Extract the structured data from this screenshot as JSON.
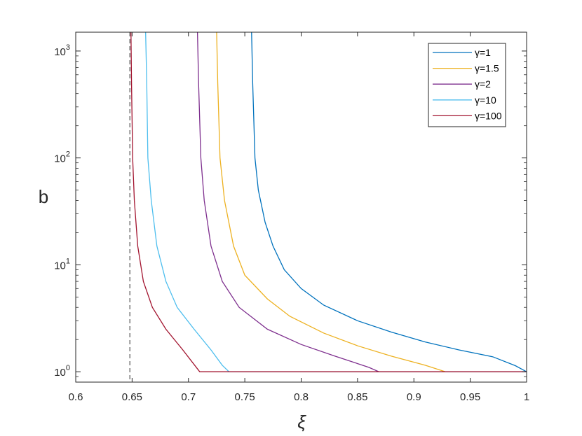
{
  "chart_data": {
    "type": "line",
    "title": "",
    "xlabel": "ξ",
    "ylabel": "b",
    "xlim": [
      0.6,
      1.0
    ],
    "ylim": [
      0.8,
      1500
    ],
    "yscale": "log",
    "grid": false,
    "legend_position": "top-right",
    "x_ticks": [
      "0.6",
      "0.65",
      "0.7",
      "0.75",
      "0.8",
      "0.85",
      "0.9",
      "0.95",
      "1"
    ],
    "y_ticks": [
      {
        "base": "10",
        "exp": "0"
      },
      {
        "base": "10",
        "exp": "1"
      },
      {
        "base": "10",
        "exp": "2"
      },
      {
        "base": "10",
        "exp": "3"
      }
    ],
    "reference_line": {
      "x": 0.648,
      "style": "dashed"
    },
    "series": [
      {
        "name": "γ=1",
        "color": "#0072BD",
        "points": [
          [
            0.756,
            1500
          ],
          [
            0.757,
            500
          ],
          [
            0.759,
            100
          ],
          [
            0.762,
            50
          ],
          [
            0.768,
            25
          ],
          [
            0.775,
            15
          ],
          [
            0.785,
            9
          ],
          [
            0.8,
            6
          ],
          [
            0.82,
            4.2
          ],
          [
            0.85,
            3
          ],
          [
            0.88,
            2.35
          ],
          [
            0.91,
            1.9
          ],
          [
            0.94,
            1.6
          ],
          [
            0.97,
            1.38
          ],
          [
            0.99,
            1.14
          ],
          [
            1.0,
            1.0
          ]
        ]
      },
      {
        "name": "γ=1.5",
        "color": "#EDB120",
        "points": [
          [
            0.725,
            1500
          ],
          [
            0.726,
            500
          ],
          [
            0.728,
            100
          ],
          [
            0.732,
            40
          ],
          [
            0.74,
            15
          ],
          [
            0.75,
            8
          ],
          [
            0.77,
            4.8
          ],
          [
            0.79,
            3.3
          ],
          [
            0.82,
            2.3
          ],
          [
            0.85,
            1.75
          ],
          [
            0.88,
            1.4
          ],
          [
            0.91,
            1.15
          ],
          [
            0.928,
            1.0
          ],
          [
            1.0,
            1.0
          ]
        ]
      },
      {
        "name": "γ=2",
        "color": "#7E2F8E",
        "points": [
          [
            0.708,
            1500
          ],
          [
            0.709,
            500
          ],
          [
            0.711,
            100
          ],
          [
            0.714,
            40
          ],
          [
            0.72,
            15
          ],
          [
            0.73,
            7
          ],
          [
            0.745,
            4
          ],
          [
            0.77,
            2.5
          ],
          [
            0.8,
            1.8
          ],
          [
            0.83,
            1.4
          ],
          [
            0.86,
            1.1
          ],
          [
            0.869,
            1.0
          ],
          [
            1.0,
            1.0
          ]
        ]
      },
      {
        "name": "γ=10",
        "color": "#4DBEEE",
        "points": [
          [
            0.662,
            1500
          ],
          [
            0.663,
            500
          ],
          [
            0.664,
            100
          ],
          [
            0.667,
            40
          ],
          [
            0.672,
            15
          ],
          [
            0.68,
            7
          ],
          [
            0.69,
            4
          ],
          [
            0.705,
            2.5
          ],
          [
            0.72,
            1.6
          ],
          [
            0.73,
            1.15
          ],
          [
            0.736,
            1.0
          ],
          [
            1.0,
            1.0
          ]
        ]
      },
      {
        "name": "γ=100",
        "color": "#A2142F",
        "points": [
          [
            0.649,
            1500
          ],
          [
            0.6495,
            500
          ],
          [
            0.6505,
            100
          ],
          [
            0.652,
            40
          ],
          [
            0.655,
            15
          ],
          [
            0.66,
            7
          ],
          [
            0.668,
            4
          ],
          [
            0.68,
            2.5
          ],
          [
            0.695,
            1.6
          ],
          [
            0.71,
            1.0
          ],
          [
            1.0,
            1.0
          ]
        ]
      }
    ]
  }
}
